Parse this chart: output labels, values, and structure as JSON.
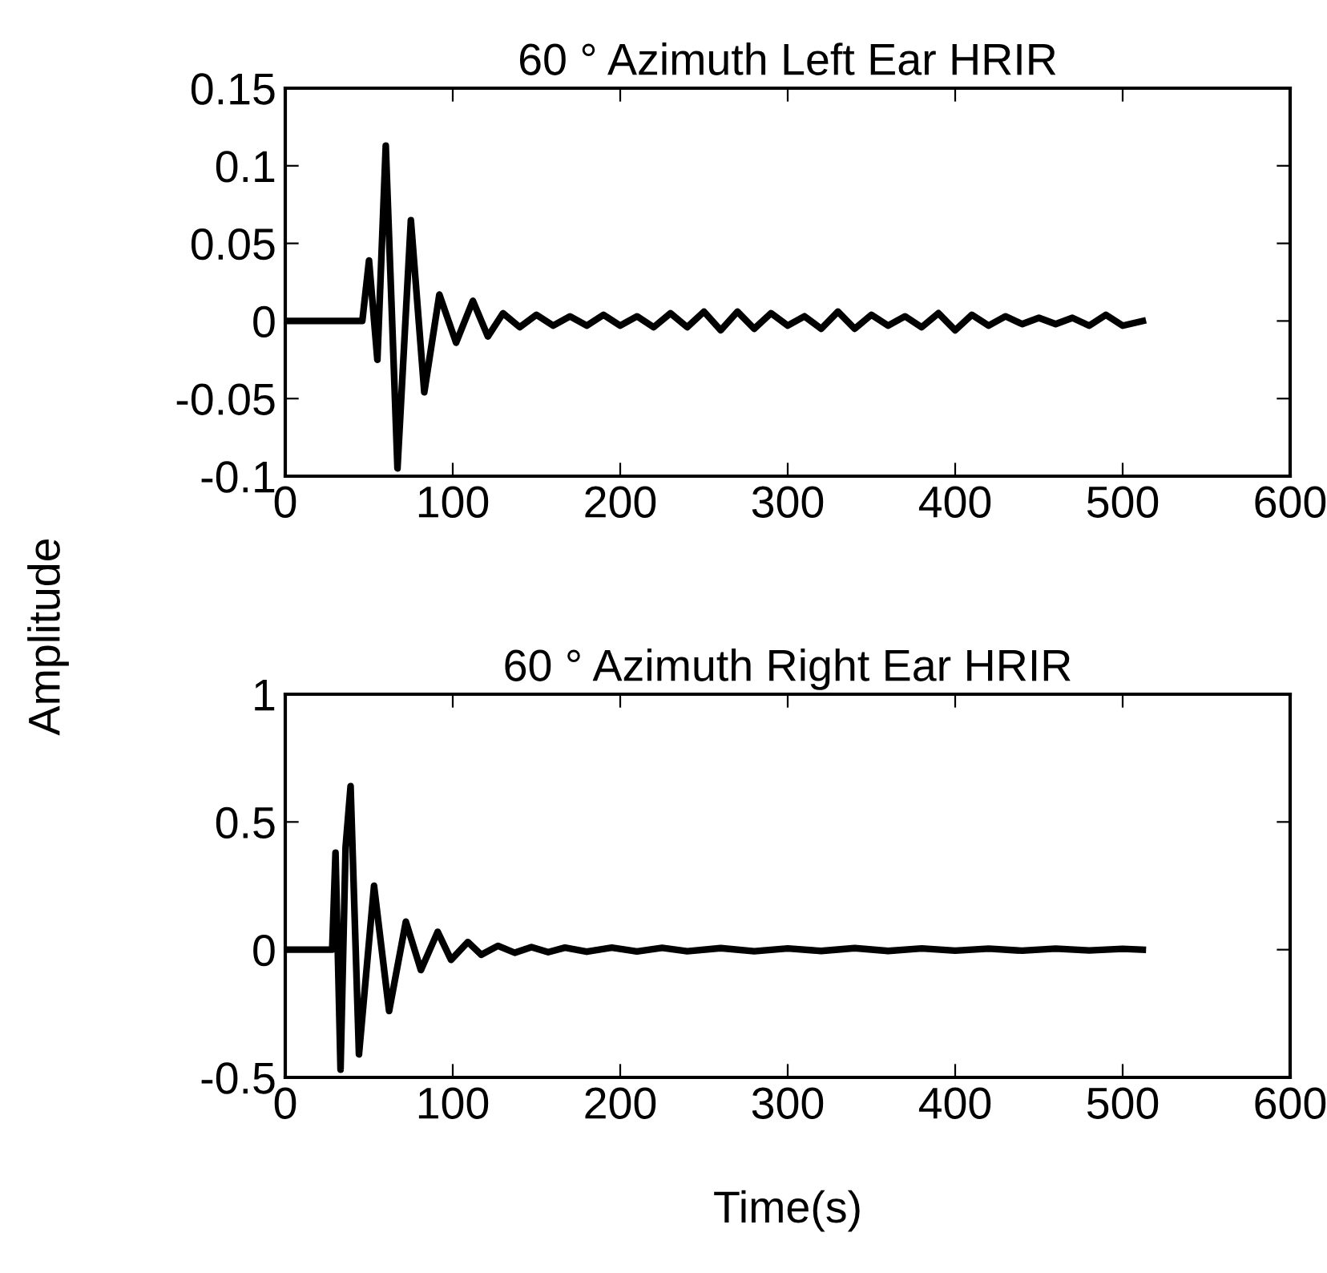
{
  "chart_data": [
    {
      "type": "line",
      "title": "60 ° Azimuth Left Ear HRIR",
      "ylabel": "Amplitude",
      "x": [
        0,
        46,
        50,
        55,
        60,
        67,
        75,
        83,
        92,
        102,
        112,
        121,
        130,
        140,
        150,
        160,
        170,
        180,
        190,
        200,
        210,
        220,
        230,
        240,
        250,
        260,
        270,
        280,
        290,
        300,
        310,
        320,
        330,
        340,
        350,
        360,
        370,
        380,
        390,
        400,
        410,
        420,
        430,
        440,
        450,
        460,
        470,
        480,
        490,
        500,
        512
      ],
      "series": [
        {
          "color": "#000000",
          "values": [
            0,
            0,
            0.039,
            -0.025,
            0.113,
            -0.095,
            0.065,
            -0.046,
            0.017,
            -0.014,
            0.013,
            -0.01,
            0.005,
            -0.004,
            0.004,
            -0.003,
            0.003,
            -0.003,
            0.004,
            -0.003,
            0.003,
            -0.004,
            0.005,
            -0.004,
            0.006,
            -0.006,
            0.006,
            -0.005,
            0.005,
            -0.003,
            0.003,
            -0.005,
            0.006,
            -0.005,
            0.004,
            -0.003,
            0.003,
            -0.004,
            0.005,
            -0.006,
            0.004,
            -0.003,
            0.003,
            -0.002,
            0.002,
            -0.002,
            0.002,
            -0.003,
            0.004,
            -0.003,
            0
          ]
        }
      ],
      "xlim": [
        0,
        600
      ],
      "xticks": [
        0,
        100,
        200,
        300,
        400,
        500,
        600
      ],
      "ylim": [
        -0.1,
        0.15
      ],
      "yticks": [
        -0.1,
        -0.05,
        0,
        0.05,
        0.1,
        0.15
      ],
      "grid": false,
      "legend": false
    },
    {
      "type": "line",
      "title": "60 ° Azimuth Right Ear HRIR",
      "xlabel": "Time(s)",
      "x": [
        0,
        28,
        30,
        33,
        36,
        39,
        44,
        53,
        62,
        72,
        81,
        91,
        99,
        109,
        117,
        127,
        137,
        147,
        157,
        167,
        180,
        195,
        210,
        225,
        240,
        260,
        280,
        300,
        320,
        340,
        360,
        380,
        400,
        420,
        440,
        460,
        480,
        500,
        512
      ],
      "series": [
        {
          "color": "#000000",
          "values": [
            0,
            0,
            0.38,
            -0.47,
            0.4,
            0.64,
            -0.41,
            0.25,
            -0.24,
            0.11,
            -0.08,
            0.07,
            -0.04,
            0.03,
            -0.02,
            0.015,
            -0.012,
            0.01,
            -0.01,
            0.008,
            -0.008,
            0.008,
            -0.007,
            0.007,
            -0.006,
            0.006,
            -0.006,
            0.005,
            -0.005,
            0.006,
            -0.005,
            0.005,
            -0.004,
            0.004,
            -0.004,
            0.004,
            -0.003,
            0.003,
            0
          ]
        }
      ],
      "xlim": [
        0,
        600
      ],
      "xticks": [
        0,
        100,
        200,
        300,
        400,
        500,
        600
      ],
      "ylim": [
        -0.5,
        1
      ],
      "yticks": [
        -0.5,
        0,
        0.5,
        1
      ],
      "grid": false,
      "legend": false
    }
  ]
}
